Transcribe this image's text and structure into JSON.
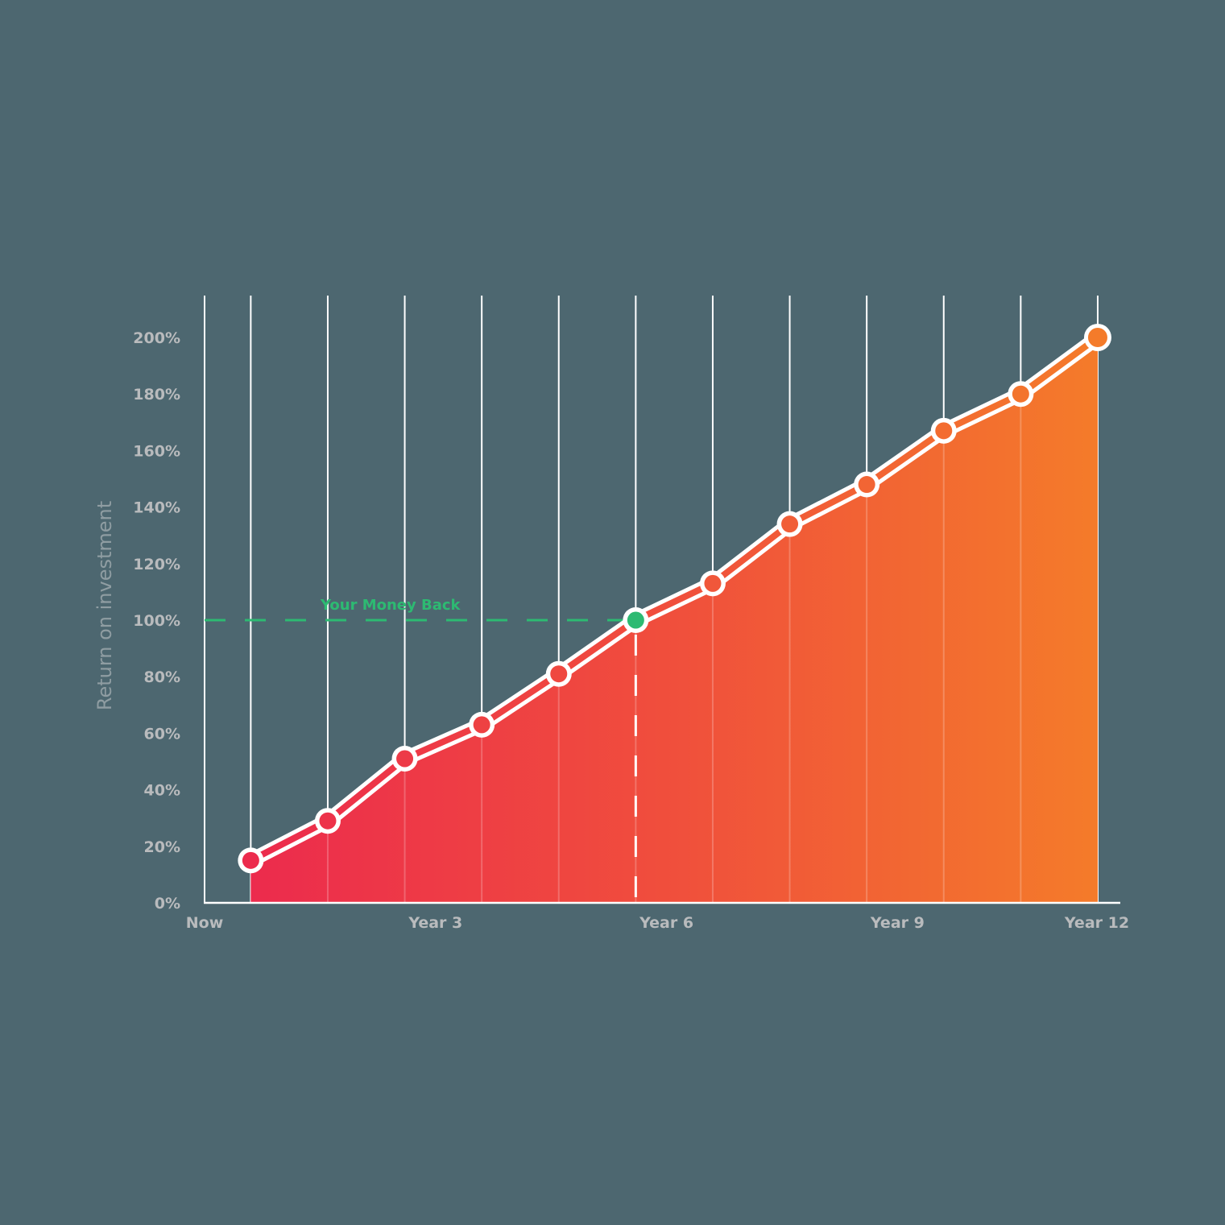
{
  "chart_data": {
    "type": "area",
    "title": "",
    "xlabel": "",
    "ylabel": "Return on investment",
    "ylim": [
      0,
      200
    ],
    "y_ticks": [
      "0%",
      "20%",
      "40%",
      "60%",
      "80%",
      "100%",
      "120%",
      "140%",
      "160%",
      "180%",
      "200%"
    ],
    "x_tick_labels": [
      {
        "label": "Now",
        "x": 0
      },
      {
        "label": "Year 3",
        "x": 3
      },
      {
        "label": "Year 6",
        "x": 6
      },
      {
        "label": "Year 9",
        "x": 9
      },
      {
        "label": "Year 12",
        "x": 12
      }
    ],
    "x": [
      0.6,
      1.6,
      2.6,
      3.6,
      4.6,
      5.6,
      6.6,
      7.6,
      8.6,
      9.6,
      10.6,
      11.6
    ],
    "series": [
      {
        "name": "Return on investment",
        "values": [
          15,
          29,
          51,
          63,
          81,
          100,
          113,
          134,
          148,
          167,
          180,
          200
        ]
      }
    ],
    "annotations": [
      {
        "type": "hline",
        "y": 100,
        "label": "Your Money Back",
        "color": "#2dba72",
        "style": "dashed"
      },
      {
        "type": "vline",
        "x_index": 5,
        "color": "#ffffff",
        "style": "dashed"
      },
      {
        "type": "highlight-point",
        "index": 5,
        "color": "#2dba72"
      }
    ],
    "grid": {
      "vertical": true,
      "horizontal": false
    },
    "legend": null,
    "colors": {
      "background": "#4d6770",
      "fill_start": "#ec2b4d",
      "fill_end": "#f47b2a",
      "line": "#ffffff",
      "gridline": "#ffffff",
      "tick_label": "#b9bbbd",
      "axis_title": "#8f9da2",
      "money_back": "#2dba72"
    }
  }
}
